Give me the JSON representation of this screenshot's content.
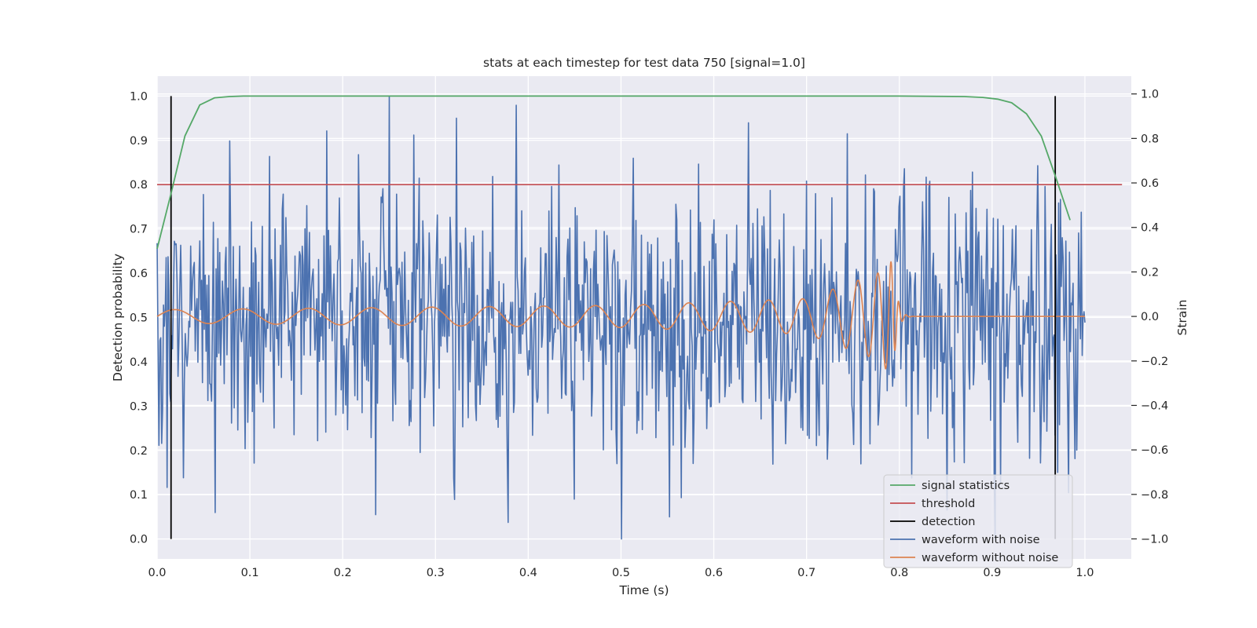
{
  "chart_data": {
    "type": "line",
    "title": "stats at each timestep for test data 750 [signal=1.0]",
    "xlabel": "Time (s)",
    "ylabel": "Detection probability",
    "y2label": "Strain",
    "xlim": [
      0.0,
      1.05
    ],
    "ylim": [
      -0.045,
      1.045
    ],
    "y2lim": [
      -1.09,
      1.08
    ],
    "xticks": [
      "0.0",
      "0.1",
      "0.2",
      "0.3",
      "0.4",
      "0.5",
      "0.6",
      "0.7",
      "0.8",
      "0.9",
      "1.0"
    ],
    "yticks": [
      "0.0",
      "0.1",
      "0.2",
      "0.3",
      "0.4",
      "0.5",
      "0.6",
      "0.7",
      "0.8",
      "0.9",
      "1.0"
    ],
    "y2ticks": [
      "−1.0",
      "−0.8",
      "−0.6",
      "−0.4",
      "−0.2",
      "0.0",
      "0.2",
      "0.4",
      "0.6",
      "0.8",
      "1.0"
    ],
    "grid": true,
    "legend_position": "lower-right",
    "series": [
      {
        "name": "signal statistics",
        "color": "#55a868",
        "axis": "left",
        "x": [
          0.0,
          0.015,
          0.03,
          0.046,
          0.062,
          0.078,
          0.093,
          0.2,
          0.4,
          0.6,
          0.8,
          0.87,
          0.89,
          0.906,
          0.921,
          0.937,
          0.953,
          0.968,
          0.984
        ],
        "y": [
          0.655,
          0.78,
          0.91,
          0.98,
          0.996,
          0.999,
          1.0,
          1.0,
          1.0,
          1.0,
          1.0,
          0.999,
          0.997,
          0.993,
          0.985,
          0.96,
          0.91,
          0.82,
          0.72
        ]
      },
      {
        "name": "threshold",
        "color": "#c44e52",
        "axis": "left",
        "x": [
          0.0,
          1.04
        ],
        "y": [
          0.8,
          0.8
        ]
      },
      {
        "name": "detection",
        "color": "#000000",
        "axis": "left",
        "segments": [
          {
            "x": 0.015,
            "y": [
              0.0,
              1.0
            ]
          },
          {
            "x": 0.968,
            "y": [
              0.0,
              1.0
            ]
          }
        ]
      },
      {
        "name": "waveform with noise",
        "color": "#4c72b0",
        "axis": "left",
        "x_range": [
          0.0,
          1.0
        ],
        "n_points": 1024,
        "mean": 0.5,
        "std": 0.15,
        "y_range": [
          0.0,
          1.0
        ],
        "notable_peaks": [
          {
            "x": 0.25,
            "y": 1.0
          },
          {
            "x": 0.323,
            "y": 0.95
          },
          {
            "x": 0.236,
            "y": 0.055
          },
          {
            "x": 0.5,
            "y": 0.0
          },
          {
            "x": 0.552,
            "y": 0.05
          },
          {
            "x": 0.45,
            "y": 0.09
          }
        ]
      },
      {
        "name": "waveform without noise",
        "color": "#dd8452",
        "axis": "right",
        "x_range": [
          0.0,
          1.0
        ],
        "description_points": [
          {
            "x": 0.0,
            "amplitude": 0.03
          },
          {
            "x": 0.5,
            "amplitude": 0.05
          },
          {
            "x": 0.7,
            "amplitude": 0.08
          },
          {
            "x": 0.78,
            "amplitude": 0.2
          },
          {
            "x": 0.79,
            "amplitude": 0.27
          },
          {
            "x": 0.8,
            "amplitude": 0.05
          },
          {
            "x": 0.82,
            "amplitude": 0.0
          },
          {
            "x": 1.0,
            "amplitude": 0.0
          }
        ]
      }
    ]
  }
}
